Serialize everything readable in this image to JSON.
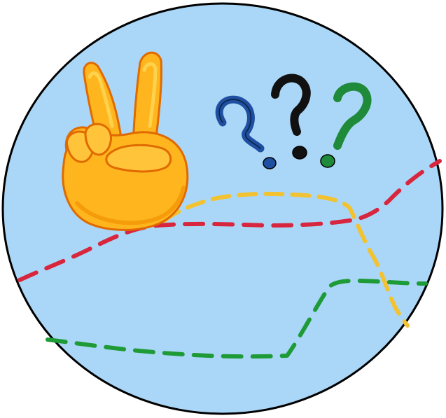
{
  "scene": {
    "colors": {
      "background_disc": "#aad7f7",
      "outline": "#000000",
      "hand_fill": "#ffb61e",
      "hand_shade": "#f59c0a",
      "hand_highlight": "#ffd24d",
      "hand_outline": "#e06a00",
      "question_blue": "#1f4fa0",
      "question_black": "#111111",
      "question_green": "#1e8a3a",
      "line_red": "#d7263d",
      "line_yellow": "#f2c230",
      "line_green": "#1e9a36"
    },
    "icons": {
      "hand": "victory-hand-icon",
      "questions": [
        "question-mark-icon",
        "question-mark-icon",
        "question-mark-icon"
      ]
    }
  }
}
